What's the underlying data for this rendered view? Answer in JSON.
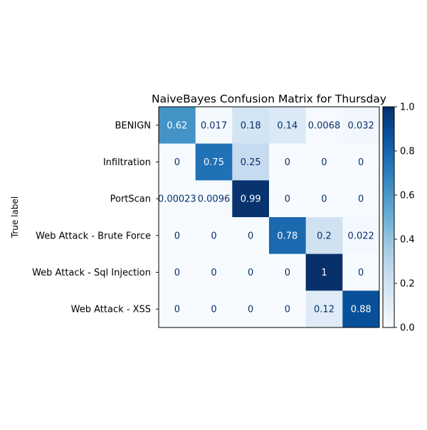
{
  "chart_data": {
    "type": "heatmap",
    "title": "NaiveBayes Confusion Matrix for Thursday",
    "ylabel": "True label",
    "xlabel": "",
    "row_labels": [
      "BENIGN",
      "Infiltration",
      "PortScan",
      "Web Attack - Brute Force",
      "Web Attack - Sql Injection",
      "Web Attack - XSS"
    ],
    "column_labels_visible": false,
    "values": [
      [
        0.62,
        0.017,
        0.18,
        0.14,
        0.0068,
        0.032
      ],
      [
        0,
        0.75,
        0.25,
        0,
        0,
        0
      ],
      [
        0.00023,
        0.0096,
        0.99,
        0,
        0,
        0
      ],
      [
        0,
        0,
        0,
        0.78,
        0.2,
        0.022
      ],
      [
        0,
        0,
        0,
        0,
        1,
        0
      ],
      [
        0,
        0,
        0,
        0,
        0.12,
        0.88
      ]
    ],
    "value_labels": [
      [
        "0.62",
        "0.017",
        "0.18",
        "0.14",
        "0.0068",
        "0.032"
      ],
      [
        "0",
        "0.75",
        "0.25",
        "0",
        "0",
        "0"
      ],
      [
        "0.00023",
        "0.0096",
        "0.99",
        "0",
        "0",
        "0"
      ],
      [
        "0",
        "0",
        "0",
        "0.78",
        "0.2",
        "0.022"
      ],
      [
        "0",
        "0",
        "0",
        "0",
        "1",
        "0"
      ],
      [
        "0",
        "0",
        "0",
        "0",
        "0.12",
        "0.88"
      ]
    ],
    "colormap": "Blues",
    "colorbar": {
      "range": [
        0.0,
        1.0
      ],
      "ticks": [
        "0.0",
        "0.2",
        "0.4",
        "0.6",
        "0.8",
        "1.0"
      ]
    },
    "text_colors": {
      "dark_cell": "#ffffff",
      "light_cell": "#08306b"
    },
    "grid": false
  }
}
